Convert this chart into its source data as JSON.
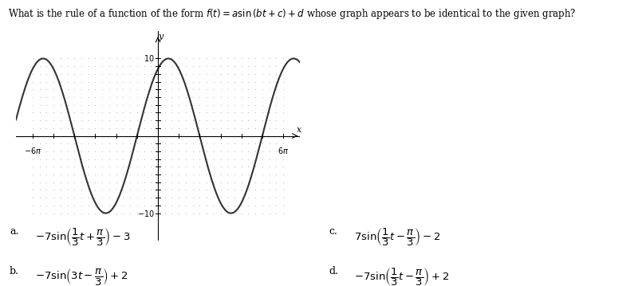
{
  "bg_color": "#ffffff",
  "curve_color": "#333333",
  "dot_color": "#aaaaaa",
  "amplitude": 10,
  "b": 0.3333333333333333,
  "phase_c": 1.0471975511965976,
  "graph_xlim_pi": 6.8,
  "graph_ylim": 13.5,
  "answer_a_label": "a.",
  "answer_a_math": "$-7\\sin\\!\\left(\\dfrac{1}{3}t+\\dfrac{\\pi}{3}\\right)-3$",
  "answer_b_label": "b.",
  "answer_b_math": "$-7\\sin\\!\\left(3t-\\dfrac{\\pi}{3}\\right)+2$",
  "answer_c_label": "c.",
  "answer_c_math": "$7\\sin\\!\\left(\\dfrac{1}{3}t-\\dfrac{\\pi}{3}\\right)-2$",
  "answer_d_label": "d.",
  "answer_d_math": "$-7\\sin\\!\\left(\\dfrac{1}{3}t-\\dfrac{\\pi}{3}\\right)+2$"
}
